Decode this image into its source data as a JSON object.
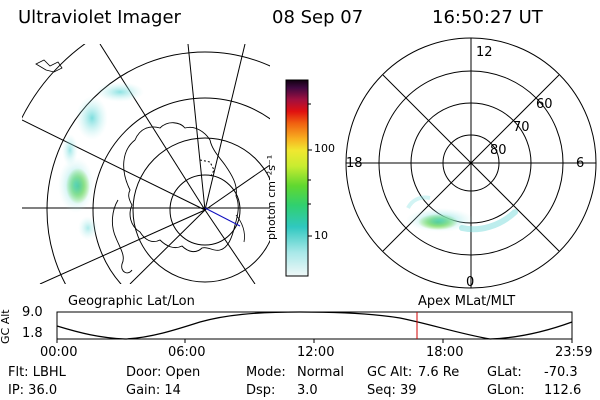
{
  "header": {
    "instrument": "Ultraviolet Imager",
    "date": "08 Sep 07",
    "time": "16:50:27 UT"
  },
  "colorbar": {
    "unit_label": "photon cm⁻²s⁻¹",
    "ticks": [
      "100",
      "10"
    ]
  },
  "polar_plot": {
    "mlt_labels": {
      "top": "12",
      "left": "18",
      "right": "6",
      "bottom": "0"
    },
    "lat_labels": [
      "60",
      "70",
      "80"
    ]
  },
  "left_panel_label": "Geographic Lat/Lon",
  "right_panel_label": "Apex MLat/MLT",
  "timeline": {
    "ylabel": "GC Alt",
    "yticks": [
      "9.0",
      "1.8"
    ],
    "xticks": [
      "00:00",
      "06:00",
      "12:00",
      "18:00",
      "23:59"
    ],
    "current_marker_time": "16:50"
  },
  "footer": {
    "row1": {
      "flt": "Flt: LBHL",
      "door": "Door: Open",
      "mode_label": "Mode:",
      "mode_value": "Normal",
      "gcalt_label": "GC Alt:",
      "gcalt_value": "7.6 Re",
      "glat_label": "GLat:",
      "glat_value": "-70.3"
    },
    "row2": {
      "ip": "IP: 36.0",
      "gain": "Gain: 14",
      "dsp_label": "Dsp:",
      "dsp_value": "3.0",
      "seq": "Seq: 39",
      "glon_label": "GLon:",
      "glon_value": "112.6"
    }
  },
  "colors": {
    "marker": "#d00000",
    "emission_high": "#34c82c",
    "emission_mid": "#a6e84a",
    "emission_low": "#5fd8d8",
    "emission_faint": "#bfeeee"
  }
}
